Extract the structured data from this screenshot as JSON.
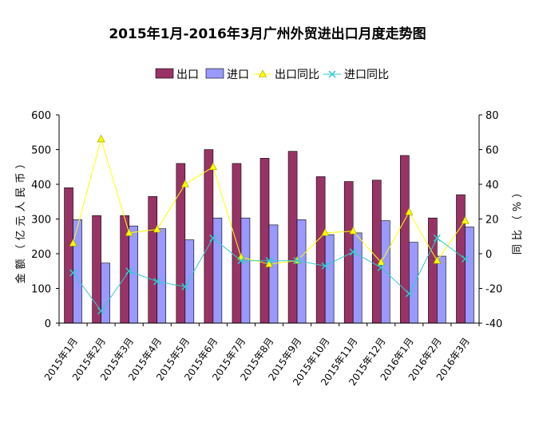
{
  "chart_data": {
    "type": "bar",
    "title": "2015年1月-2016年3月广州外贸进出口月度走势图",
    "categories": [
      "2015年1月",
      "2015年2月",
      "2015年3月",
      "2015年4月",
      "2015年5月",
      "2015年6月",
      "2015年7月",
      "2015年8月",
      "2015年9月",
      "2015年10月",
      "2015年11月",
      "2015年12月",
      "2016年1月",
      "2016年2月",
      "2016年3月"
    ],
    "ylabel": "金额（亿元人民币）",
    "y2label": "同比（%）",
    "ylim": [
      0,
      600
    ],
    "yticks": [
      0,
      100,
      200,
      300,
      400,
      500,
      600
    ],
    "y2lim": [
      -40,
      80
    ],
    "y2ticks": [
      -40,
      -20,
      0,
      20,
      40,
      60,
      80
    ],
    "legend_position": "top",
    "series": [
      {
        "name": "出口",
        "kind": "bar",
        "axis": "left",
        "color": "#993366",
        "values": [
          390,
          310,
          310,
          365,
          460,
          500,
          460,
          475,
          495,
          422,
          408,
          412,
          483,
          303,
          370
        ]
      },
      {
        "name": "进口",
        "kind": "bar",
        "axis": "left",
        "color": "#9999ff",
        "values": [
          298,
          173,
          280,
          272,
          240,
          303,
          303,
          283,
          298,
          255,
          260,
          295,
          233,
          193,
          277
        ]
      },
      {
        "name": "出口同比",
        "kind": "line",
        "axis": "right",
        "color": "#ffff00",
        "marker": "triangle",
        "values": [
          6,
          66,
          12,
          14,
          40,
          50,
          -2,
          -6,
          -4,
          12,
          13,
          -5,
          24,
          -4,
          19
        ]
      },
      {
        "name": "进口同比",
        "kind": "line",
        "axis": "right",
        "color": "#33cccc",
        "marker": "x",
        "values": [
          -11,
          -33,
          -10,
          -16,
          -19,
          9,
          -4,
          -4,
          -4,
          -7,
          1,
          -8,
          -23,
          9,
          -3
        ]
      }
    ]
  }
}
